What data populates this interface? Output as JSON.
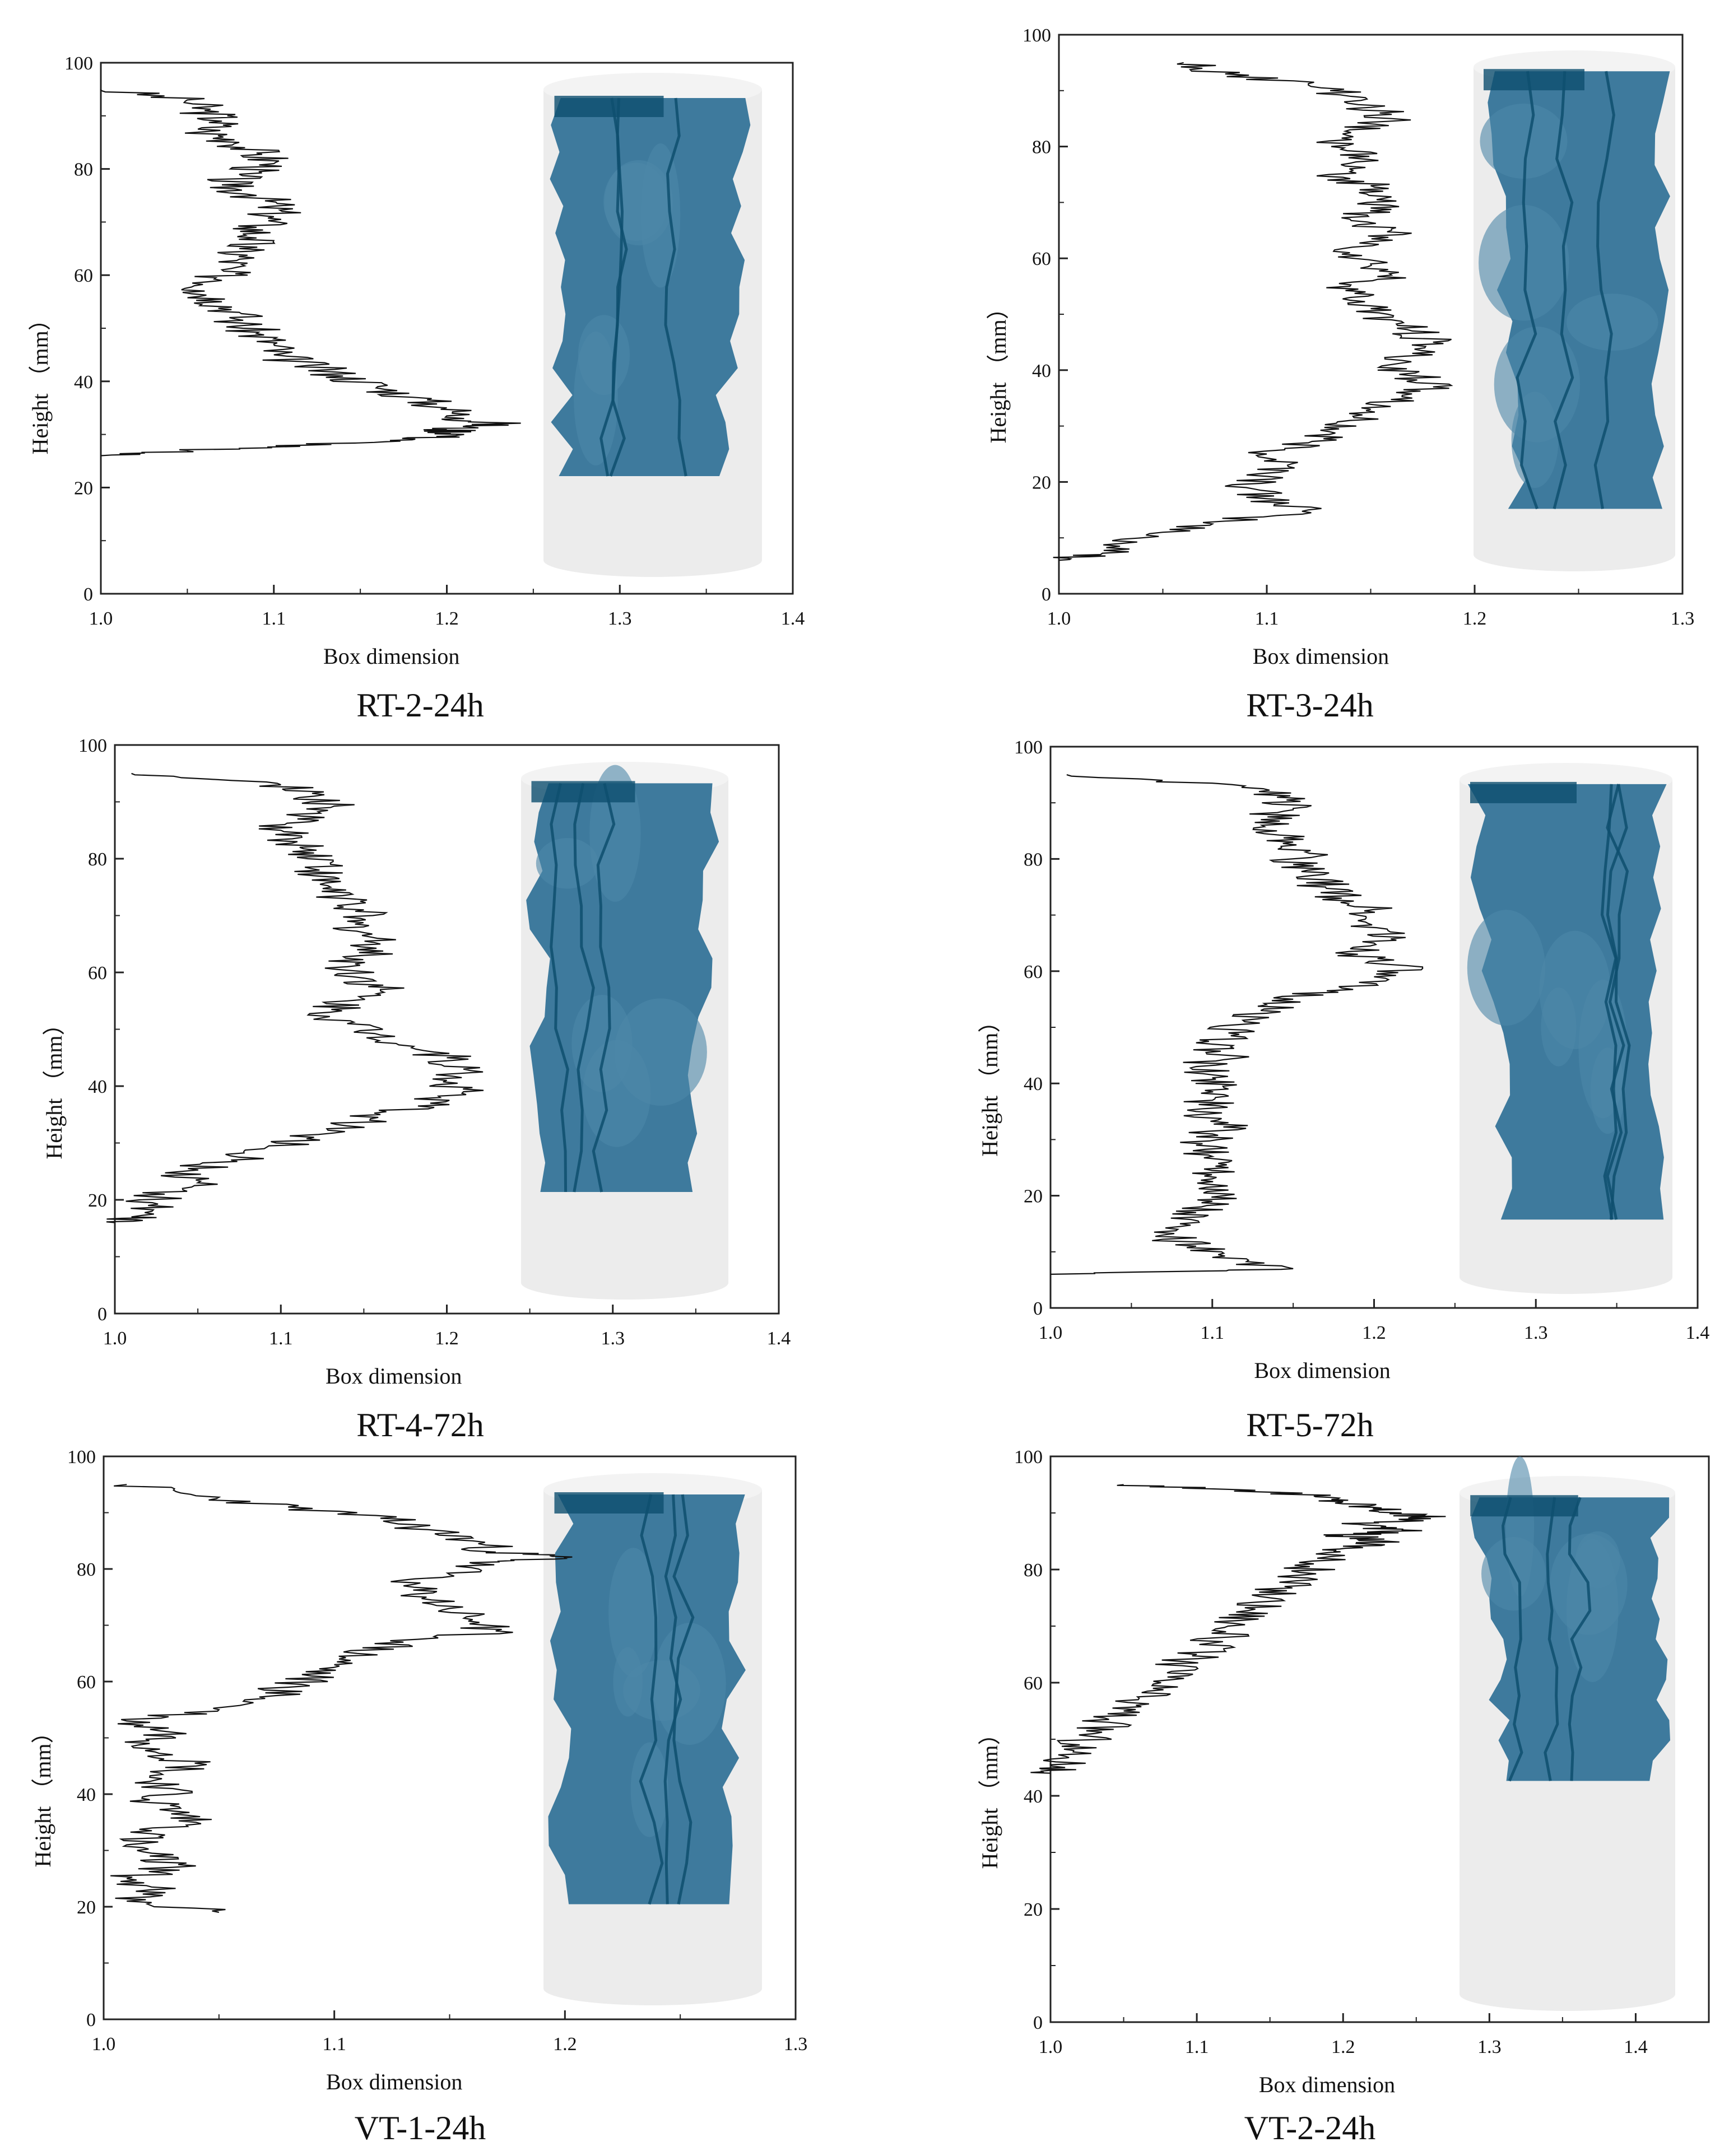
{
  "figure": {
    "colors": {
      "trace": "#111111",
      "fracture_dark": "#0e4f6f",
      "fracture": "#2f7096",
      "fracture_light": "#4c87a9",
      "specimen": "#ececec"
    }
  },
  "chart_data": [
    {
      "type": "line",
      "caption": "RT-2-24h",
      "xlabel": "Box dimension",
      "ylabel": "Height （mm）",
      "xlim": [
        1.0,
        1.4
      ],
      "ylim": [
        0,
        100
      ],
      "xticks": [
        "1.0",
        "1.1",
        "1.2",
        "1.3",
        "1.4"
      ],
      "yticks": [
        "0",
        "20",
        "40",
        "60",
        "80",
        "100"
      ],
      "height_range": [
        26,
        95
      ],
      "series": [
        {
          "name": "Box dimension profile",
          "y": [
            95,
            93,
            91,
            89,
            87,
            85,
            83,
            81,
            79,
            77,
            75,
            73,
            71,
            69,
            67,
            65,
            63,
            61,
            59,
            57,
            55,
            53,
            51,
            49,
            47,
            45,
            43,
            41,
            39,
            37,
            35,
            33,
            32,
            31,
            30,
            29,
            28,
            27,
            26
          ],
          "x": [
            1.0,
            1.05,
            1.06,
            1.07,
            1.06,
            1.08,
            1.09,
            1.1,
            1.08,
            1.07,
            1.09,
            1.1,
            1.1,
            1.09,
            1.09,
            1.08,
            1.08,
            1.07,
            1.07,
            1.06,
            1.07,
            1.08,
            1.08,
            1.09,
            1.1,
            1.1,
            1.12,
            1.14,
            1.16,
            1.18,
            1.2,
            1.21,
            1.23,
            1.2,
            1.21,
            1.18,
            1.12,
            1.05,
            1.0
          ]
        }
      ],
      "fracture_extent_mm": [
        20,
        95
      ]
    },
    {
      "type": "line",
      "caption": "RT-3-24h",
      "xlabel": "Box dimension",
      "ylabel": "Height （mm）",
      "xlim": [
        1.0,
        1.3
      ],
      "ylim": [
        0,
        100
      ],
      "xticks": [
        "1.0",
        "1.1",
        "1.2",
        "1.3"
      ],
      "yticks": [
        "0",
        "20",
        "40",
        "60",
        "80",
        "100"
      ],
      "height_range": [
        6,
        95
      ],
      "series": [
        {
          "name": "Box dimension profile",
          "y": [
            95,
            93,
            91,
            89,
            87,
            85,
            83,
            81,
            79,
            77,
            75,
            73,
            71,
            69,
            67,
            65,
            63,
            61,
            59,
            57,
            55,
            53,
            51,
            49,
            47,
            45,
            43,
            41,
            39,
            37,
            35,
            33,
            31,
            29,
            27,
            25,
            23,
            21,
            19,
            17,
            15,
            13,
            11,
            9,
            7,
            6
          ],
          "x": [
            1.06,
            1.08,
            1.12,
            1.14,
            1.15,
            1.16,
            1.14,
            1.13,
            1.15,
            1.14,
            1.13,
            1.15,
            1.16,
            1.15,
            1.14,
            1.16,
            1.15,
            1.14,
            1.15,
            1.16,
            1.14,
            1.14,
            1.15,
            1.16,
            1.17,
            1.18,
            1.17,
            1.16,
            1.17,
            1.18,
            1.17,
            1.15,
            1.14,
            1.13,
            1.12,
            1.1,
            1.11,
            1.1,
            1.09,
            1.1,
            1.12,
            1.08,
            1.05,
            1.03,
            1.02,
            1.0
          ]
        }
      ],
      "fracture_extent_mm": [
        12,
        96
      ]
    },
    {
      "type": "line",
      "caption": "RT-4-72h",
      "xlabel": "Box dimension",
      "ylabel": "Height （mm）",
      "xlim": [
        1.0,
        1.4
      ],
      "ylim": [
        0,
        100
      ],
      "xticks": [
        "1.0",
        "1.1",
        "1.2",
        "1.3",
        "1.4"
      ],
      "yticks": [
        "0",
        "20",
        "40",
        "60",
        "80",
        "100"
      ],
      "height_range": [
        16,
        95
      ],
      "series": [
        {
          "name": "Box dimension profile",
          "y": [
            95,
            93,
            91,
            89,
            87,
            85,
            83,
            81,
            79,
            77,
            75,
            73,
            71,
            69,
            67,
            65,
            63,
            61,
            59,
            57,
            55,
            53,
            51,
            49,
            47,
            45,
            43,
            41,
            39,
            37,
            35,
            33,
            31,
            29,
            27,
            25,
            23,
            21,
            19,
            17,
            16
          ],
          "x": [
            1.01,
            1.1,
            1.12,
            1.13,
            1.11,
            1.1,
            1.11,
            1.12,
            1.13,
            1.12,
            1.13,
            1.14,
            1.15,
            1.14,
            1.15,
            1.16,
            1.15,
            1.14,
            1.15,
            1.16,
            1.14,
            1.13,
            1.14,
            1.16,
            1.18,
            1.2,
            1.21,
            1.2,
            1.21,
            1.19,
            1.16,
            1.14,
            1.12,
            1.09,
            1.07,
            1.04,
            1.05,
            1.03,
            1.02,
            1.01,
            1.0
          ]
        }
      ],
      "fracture_extent_mm": [
        20,
        96
      ]
    },
    {
      "type": "line",
      "caption": "RT-5-72h",
      "xlabel": "Box dimension",
      "ylabel": "Height （mm）",
      "xlim": [
        1.0,
        1.4
      ],
      "ylim": [
        0,
        100
      ],
      "xticks": [
        "1.0",
        "1.1",
        "1.2",
        "1.3",
        "1.4"
      ],
      "yticks": [
        "0",
        "20",
        "40",
        "60",
        "80",
        "100"
      ],
      "height_range": [
        6,
        95
      ],
      "series": [
        {
          "name": "Box dimension profile",
          "y": [
            95,
            93,
            91,
            89,
            87,
            85,
            83,
            81,
            79,
            77,
            75,
            73,
            71,
            69,
            67,
            65,
            63,
            61,
            59,
            57,
            55,
            53,
            51,
            49,
            47,
            45,
            43,
            41,
            39,
            37,
            35,
            33,
            31,
            29,
            27,
            25,
            23,
            21,
            19,
            17,
            15,
            13,
            11,
            9,
            7,
            6
          ],
          "x": [
            1.01,
            1.12,
            1.14,
            1.15,
            1.13,
            1.14,
            1.15,
            1.16,
            1.15,
            1.16,
            1.17,
            1.18,
            1.2,
            1.19,
            1.21,
            1.2,
            1.19,
            1.22,
            1.2,
            1.18,
            1.15,
            1.13,
            1.12,
            1.11,
            1.1,
            1.11,
            1.09,
            1.1,
            1.11,
            1.1,
            1.09,
            1.11,
            1.1,
            1.09,
            1.1,
            1.11,
            1.1,
            1.11,
            1.1,
            1.09,
            1.08,
            1.07,
            1.09,
            1.1,
            1.15,
            1.0
          ]
        }
      ],
      "fracture_extent_mm": [
        14,
        96
      ]
    },
    {
      "type": "line",
      "caption": "VT-1-24h",
      "xlabel": "Box dimension",
      "ylabel": "Height （mm）",
      "xlim": [
        1.0,
        1.3
      ],
      "ylim": [
        0,
        100
      ],
      "xticks": [
        "1.0",
        "1.1",
        "1.2",
        "1.3"
      ],
      "yticks": [
        "0",
        "20",
        "40",
        "60",
        "80",
        "100"
      ],
      "height_range": [
        19,
        95
      ],
      "series": [
        {
          "name": "Box dimension profile",
          "y": [
            95,
            93,
            91,
            89,
            87,
            85,
            83,
            82,
            81,
            79,
            77,
            75,
            73,
            71,
            69,
            67,
            65,
            63,
            61,
            59,
            57,
            55,
            53,
            51,
            49,
            47,
            45,
            43,
            41,
            39,
            37,
            35,
            33,
            31,
            29,
            27,
            25,
            23,
            21,
            19
          ],
          "x": [
            1.01,
            1.04,
            1.08,
            1.12,
            1.14,
            1.16,
            1.17,
            1.2,
            1.16,
            1.15,
            1.13,
            1.14,
            1.15,
            1.16,
            1.17,
            1.13,
            1.11,
            1.1,
            1.09,
            1.08,
            1.07,
            1.05,
            1.01,
            1.03,
            1.02,
            1.03,
            1.04,
            1.02,
            1.03,
            1.02,
            1.03,
            1.04,
            1.02,
            1.01,
            1.02,
            1.03,
            1.01,
            1.02,
            1.01,
            1.05
          ]
        }
      ],
      "fracture_extent_mm": [
        19,
        96
      ]
    },
    {
      "type": "line",
      "caption": "VT-2-24h",
      "xlabel": "Box dimension",
      "ylabel": "Height （mm）",
      "xlim": [
        1.0,
        1.45
      ],
      "ylim": [
        0,
        100
      ],
      "xticks": [
        "1.0",
        "1.1",
        "1.2",
        "1.3",
        "1.4"
      ],
      "yticks": [
        "0",
        "20",
        "40",
        "60",
        "80",
        "100"
      ],
      "height_range": [
        44,
        95
      ],
      "series": [
        {
          "name": "Box dimension profile",
          "y": [
            95,
            94,
            93,
            92,
            91,
            90,
            89,
            88,
            87,
            86,
            85,
            84,
            83,
            81,
            79,
            77,
            75,
            73,
            71,
            69,
            67,
            65,
            63,
            61,
            59,
            57,
            55,
            53,
            51,
            49,
            47,
            45,
            44
          ],
          "x": [
            1.05,
            1.14,
            1.18,
            1.2,
            1.22,
            1.24,
            1.26,
            1.21,
            1.24,
            1.2,
            1.23,
            1.21,
            1.19,
            1.18,
            1.17,
            1.16,
            1.15,
            1.14,
            1.13,
            1.12,
            1.11,
            1.1,
            1.09,
            1.08,
            1.07,
            1.06,
            1.05,
            1.04,
            1.03,
            1.02,
            1.01,
            1.01,
            1.0
          ]
        }
      ],
      "fracture_extent_mm": [
        43,
        96
      ]
    }
  ]
}
